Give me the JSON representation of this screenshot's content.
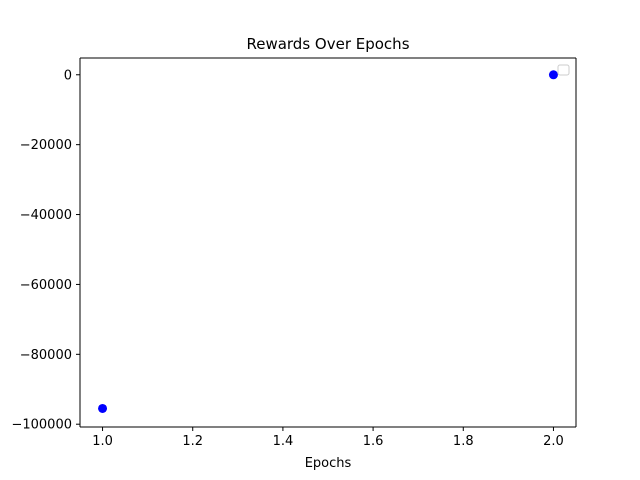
{
  "chart_data": {
    "type": "scatter",
    "title": "Rewards Over Epochs",
    "xlabel": "Epochs",
    "ylabel": "",
    "xlim": [
      0.95,
      2.05
    ],
    "ylim": [
      -100800,
      4800
    ],
    "x_ticks": [
      1.0,
      1.2,
      1.4,
      1.6,
      1.8,
      2.0
    ],
    "x_tick_labels": [
      "1.0",
      "1.2",
      "1.4",
      "1.6",
      "1.8",
      "2.0"
    ],
    "y_ticks": [
      0,
      -20000,
      -40000,
      -60000,
      -80000,
      -100000
    ],
    "y_tick_labels": [
      "0",
      "−20000",
      "−40000",
      "−60000",
      "−80000",
      "−100000"
    ],
    "grid": false,
    "legend": {
      "placement": "top-right",
      "entries": []
    },
    "series": [
      {
        "color": "#0000ff",
        "marker": "circle",
        "points": [
          {
            "x": 1.0,
            "y": -95500
          },
          {
            "x": 2.0,
            "y": 0
          }
        ]
      }
    ]
  }
}
